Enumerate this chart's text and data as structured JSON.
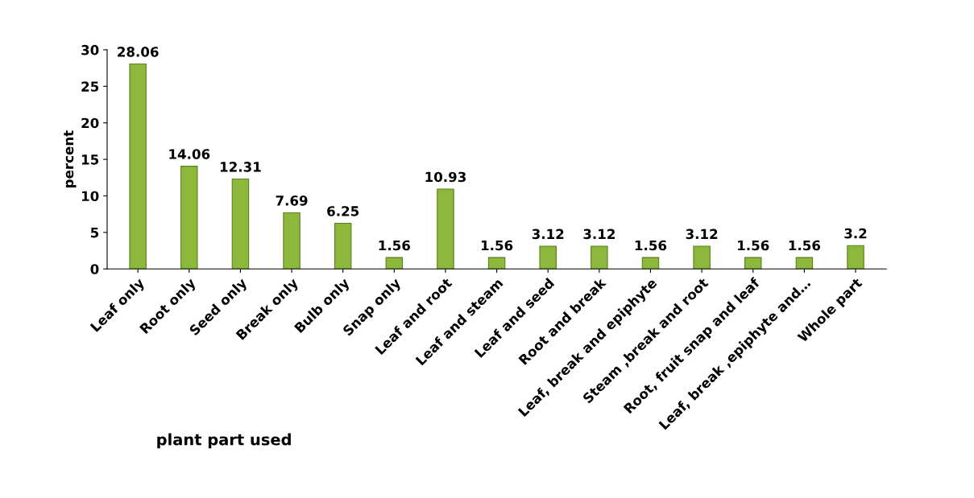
{
  "chart_data": {
    "type": "bar",
    "xlabel": "plant part used",
    "ylabel": "percent",
    "categories": [
      "Leaf only",
      "Root only",
      "Seed only",
      "Break only",
      "Bulb only",
      "Snap only",
      "Leaf and root",
      "Leaf and steam",
      "Leaf and seed",
      "Root and break",
      "Leaf, break and epiphyte",
      "Steam ,break and root",
      "Root, fruit snap and leaf",
      "Leaf, break ,epiphyte and…",
      "Whole part"
    ],
    "values": [
      28.06,
      14.06,
      12.31,
      7.69,
      6.25,
      1.56,
      10.93,
      1.56,
      3.12,
      3.12,
      1.56,
      3.12,
      1.56,
      1.56,
      3.2
    ],
    "color": "#8cb83c",
    "ylim": [
      0,
      30
    ],
    "yticks": [
      0,
      5,
      10,
      15,
      20,
      25,
      30
    ],
    "grid": false,
    "data_labels": true
  }
}
